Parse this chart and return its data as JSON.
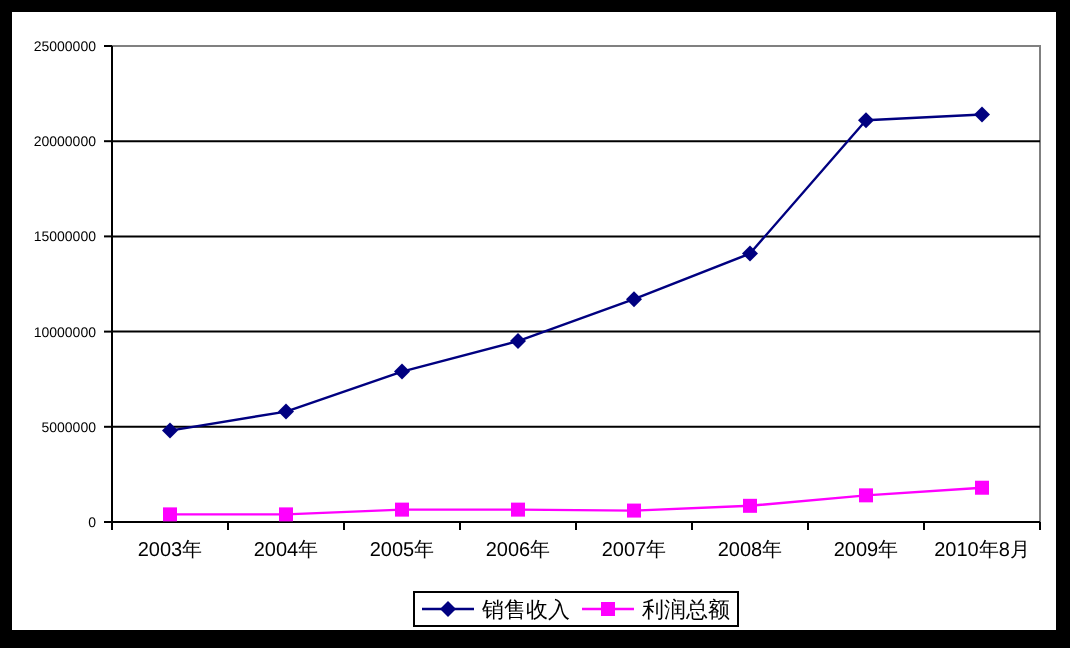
{
  "chart_data": {
    "type": "line",
    "categories": [
      "2003年",
      "2004年",
      "2005年",
      "2006年",
      "2007年",
      "2008年",
      "2009年",
      "2010年8月"
    ],
    "series": [
      {
        "name": "销售收入",
        "color": "#000080",
        "marker": "diamond",
        "values": [
          4800000,
          5800000,
          7900000,
          9500000,
          11700000,
          14100000,
          21100000,
          21400000
        ]
      },
      {
        "name": "利润总额",
        "color": "#ff00ff",
        "marker": "square",
        "values": [
          400000,
          400000,
          650000,
          650000,
          600000,
          850000,
          1400000,
          1800000
        ]
      }
    ],
    "ylim": [
      0,
      25000000
    ],
    "yticks": [
      0,
      5000000,
      10000000,
      15000000,
      20000000,
      25000000
    ],
    "grid": "y",
    "legend": "bottom"
  }
}
